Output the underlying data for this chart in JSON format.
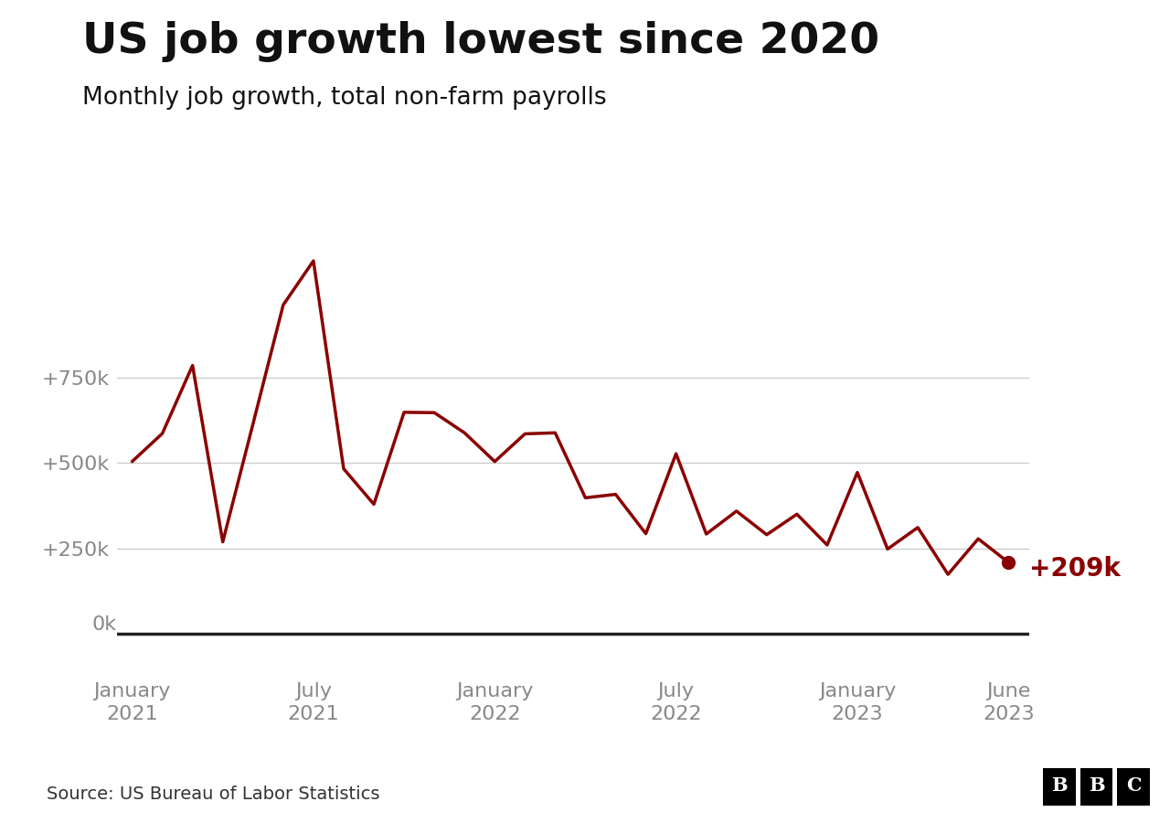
{
  "title": "US job growth lowest since 2020",
  "subtitle": "Monthly job growth, total non-farm payrolls",
  "source": "Source: US Bureau of Labor Statistics",
  "line_color": "#8B0000",
  "background_color": "#ffffff",
  "annotation_label": "+209k",
  "values": [
    504,
    586,
    785,
    269,
    614,
    962,
    1091,
    483,
    379,
    648,
    647,
    588,
    504,
    585,
    588,
    398,
    408,
    293,
    527,
    292,
    359,
    290,
    350,
    260,
    472,
    248,
    311,
    174,
    278,
    209
  ],
  "ytick_vals": [
    250,
    500,
    750
  ],
  "ytick_labels": [
    "+250k",
    "+500k",
    "+750k"
  ],
  "ylim_min": -120,
  "ylim_max": 1180,
  "grid_color": "#cccccc",
  "tick_color": "#888888",
  "x_tick_positions": [
    0,
    6,
    12,
    18,
    24,
    29
  ],
  "x_tick_labels": [
    "January\n2021",
    "July\n2021",
    "January\n2022",
    "July\n2022",
    "January\n2023",
    "June\n2023"
  ],
  "title_fontsize": 34,
  "subtitle_fontsize": 19,
  "source_fontsize": 14,
  "tick_fontsize": 16,
  "zero_label": "0k"
}
